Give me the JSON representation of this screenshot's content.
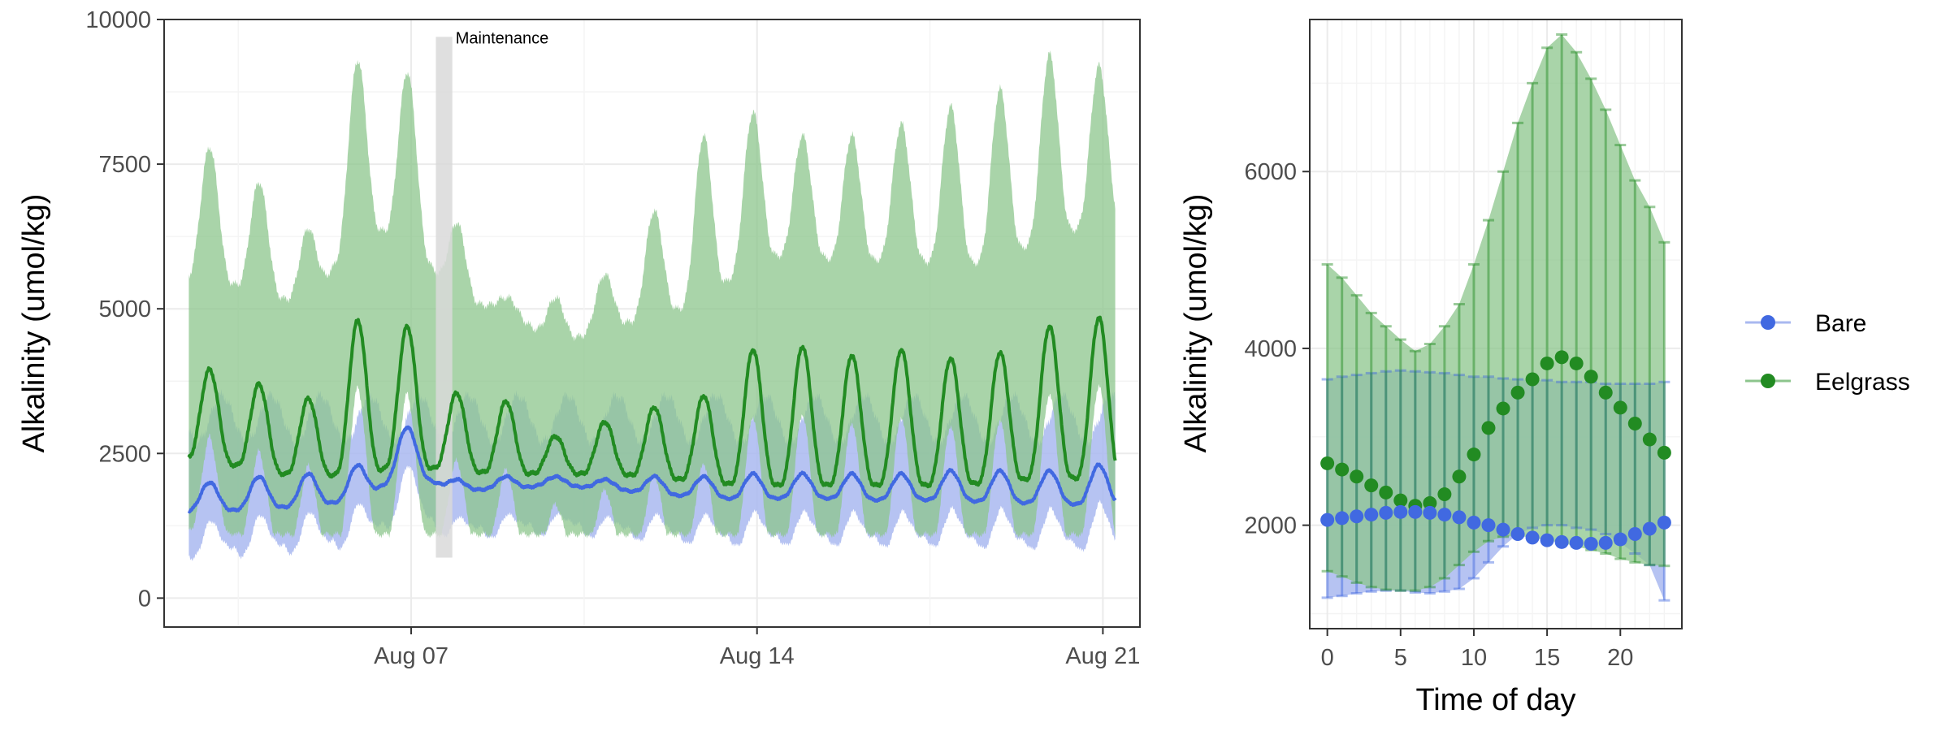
{
  "chart_data": [
    {
      "type": "line",
      "xlabel": "",
      "ylabel": "Alkalinity (umol/kg)",
      "x_axis": "date",
      "xlim": [
        "2023-08-02",
        "2023-08-21T18:00"
      ],
      "ylim": [
        -500,
        10000
      ],
      "y_ticks": [
        0,
        2500,
        5000,
        7500,
        10000
      ],
      "x_ticks": [
        {
          "date": "2023-08-07",
          "label": "Aug 07"
        },
        {
          "date": "2023-08-14",
          "label": "Aug 14"
        },
        {
          "date": "2023-08-21",
          "label": "Aug 21"
        }
      ],
      "grid": true,
      "annotation": {
        "label": "Maintenance",
        "x_start": "2023-08-07T12:00",
        "x_end": "2023-08-07T20:00",
        "y_min": 700,
        "y_max": 9700
      },
      "daily_peaks": {
        "dates": [
          "2023-08-03",
          "2023-08-04",
          "2023-08-05",
          "2023-08-06",
          "2023-08-07",
          "2023-08-08",
          "2023-08-09",
          "2023-08-10",
          "2023-08-11",
          "2023-08-12",
          "2023-08-13",
          "2023-08-14",
          "2023-08-15",
          "2023-08-16",
          "2023-08-17",
          "2023-08-18",
          "2023-08-19",
          "2023-08-20",
          "2023-08-21"
        ],
        "series": [
          {
            "name": "Bare",
            "mean_peak": [
              2000,
              2100,
              2150,
              2300,
              2950,
              2050,
              2100,
              2100,
              2050,
              2100,
              2100,
              2150,
              2150,
              2150,
              2150,
              2200,
              2200,
              2200,
              2300
            ],
            "mean_trough": [
              1500,
              1550,
              1600,
              1700,
              2200,
              1850,
              1900,
              1950,
              1900,
              1800,
              1750,
              1700,
              1750,
              1700,
              1700,
              1700,
              1650,
              1650,
              1600
            ]
          },
          {
            "name": "Eelgrass",
            "mean_peak": [
              3950,
              3700,
              3450,
              4800,
              4700,
              3550,
              3400,
              2800,
              3050,
              3300,
              3500,
              4300,
              4350,
              4200,
              4300,
              4150,
              4250,
              4700,
              4850
            ],
            "mean_trough": [
              2400,
              2200,
              2100,
              2150,
              2300,
              2200,
              2150,
              2150,
              2150,
              2100,
              2000,
              1950,
              1950,
              1950,
              1950,
              1950,
              2000,
              2100,
              2050
            ],
            "upper_peak": [
              7800,
              7200,
              6400,
              9300,
              9100,
              6500,
              5200,
              5200,
              5600,
              6700,
              8000,
              8400,
              8000,
              8000,
              8200,
              8500,
              8800,
              9400,
              9200
            ]
          }
        ]
      }
    },
    {
      "type": "line",
      "xlabel": "Time of day",
      "ylabel": "Alkalinity (umol/kg)",
      "xlim": [
        -1.2,
        24.2
      ],
      "ylim": [
        830,
        7720
      ],
      "x_ticks": [
        0,
        5,
        10,
        15,
        20
      ],
      "y_ticks": [
        2000,
        4000,
        6000
      ],
      "grid": true,
      "x": [
        0,
        1,
        2,
        3,
        4,
        5,
        6,
        7,
        8,
        9,
        10,
        11,
        12,
        13,
        14,
        15,
        16,
        17,
        18,
        19,
        20,
        21,
        22,
        23
      ],
      "series": [
        {
          "name": "Bare",
          "values": [
            2060,
            2080,
            2100,
            2120,
            2140,
            2150,
            2150,
            2140,
            2120,
            2090,
            2030,
            2000,
            1950,
            1900,
            1860,
            1830,
            1810,
            1800,
            1790,
            1800,
            1840,
            1900,
            1960,
            2030
          ],
          "upper": [
            3650,
            3680,
            3700,
            3720,
            3740,
            3750,
            3740,
            3730,
            3720,
            3700,
            3680,
            3680,
            3660,
            3650,
            3640,
            3640,
            3620,
            3620,
            3620,
            3600,
            3600,
            3600,
            3600,
            3620
          ],
          "lower": [
            1180,
            1200,
            1230,
            1250,
            1260,
            1260,
            1240,
            1230,
            1250,
            1280,
            1400,
            1580,
            1760,
            1900,
            1970,
            2000,
            2000,
            1970,
            1950,
            1900,
            1800,
            1680,
            1550,
            1150
          ]
        },
        {
          "name": "Eelgrass",
          "values": [
            2700,
            2630,
            2550,
            2450,
            2370,
            2280,
            2220,
            2250,
            2350,
            2550,
            2800,
            3100,
            3320,
            3500,
            3650,
            3830,
            3900,
            3830,
            3680,
            3500,
            3330,
            3150,
            2970,
            2820
          ],
          "upper": [
            4950,
            4800,
            4600,
            4400,
            4250,
            4100,
            3970,
            4050,
            4250,
            4500,
            4950,
            5450,
            6000,
            6550,
            7000,
            7400,
            7550,
            7350,
            7050,
            6700,
            6300,
            5900,
            5600,
            5200
          ],
          "lower": [
            1480,
            1420,
            1350,
            1300,
            1270,
            1260,
            1260,
            1300,
            1400,
            1550,
            1700,
            1820,
            1870,
            1880,
            1860,
            1830,
            1800,
            1760,
            1720,
            1680,
            1620,
            1580,
            1550,
            1540
          ]
        }
      ]
    }
  ],
  "legend": {
    "placement": "right",
    "items": [
      {
        "label": "Bare",
        "color": "#4169e1",
        "fill": "#a9b8f0"
      },
      {
        "label": "Eelgrass",
        "color": "#228b22",
        "fill": "#8cc58c"
      }
    ]
  },
  "colors": {
    "bare_line": "#4169e1",
    "bare_fill": "#a9b8f0",
    "eelgrass_line": "#228b22",
    "eelgrass_fill": "#8cc58c",
    "maintenance_band": "#d9d9d9"
  }
}
